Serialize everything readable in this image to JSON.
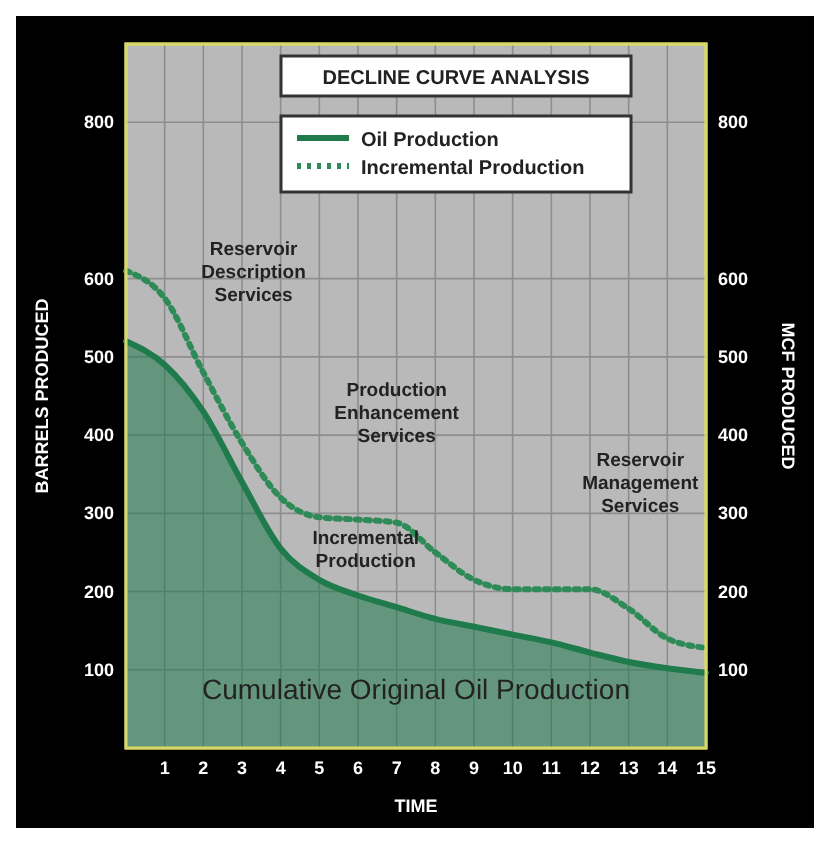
{
  "chart_data": {
    "type": "line",
    "title": "DECLINE CURVE ANALYSIS",
    "xlabel": "TIME",
    "ylabel": "BARRELS PRODUCED",
    "y2label": "MCF PRODUCED",
    "x": [
      0,
      1,
      2,
      3,
      4,
      5,
      6,
      7,
      8,
      9,
      10,
      11,
      12,
      13,
      14,
      15
    ],
    "series": [
      {
        "name": "Oil Production",
        "type": "area",
        "color": "#1f7a4c",
        "line_style": "solid",
        "values": [
          520,
          490,
          430,
          340,
          255,
          215,
          195,
          180,
          165,
          155,
          145,
          135,
          122,
          110,
          102,
          96
        ]
      },
      {
        "name": "Incremental Production",
        "color": "#2e8b57",
        "line_style": "dotted",
        "values": [
          610,
          575,
          480,
          390,
          320,
          295,
          292,
          288,
          250,
          215,
          203,
          203,
          203,
          178,
          140,
          128
        ]
      }
    ],
    "xlim": [
      0,
      15
    ],
    "xticks": [
      1,
      2,
      3,
      4,
      5,
      6,
      7,
      8,
      9,
      10,
      11,
      12,
      13,
      14,
      15
    ],
    "ylim": [
      0,
      900
    ],
    "yticks": [
      100,
      200,
      300,
      400,
      500,
      600,
      800
    ],
    "y2lim": [
      0,
      900
    ],
    "y2ticks": [
      100,
      200,
      300,
      400,
      500,
      600,
      800
    ],
    "grid": true,
    "legend": "top",
    "annotations": [
      "Reservoir Description Services",
      "Production Enhancement Services",
      "Reservoir Management Services",
      "Incremental Production",
      "Cumulative Original Oil Production"
    ]
  }
}
